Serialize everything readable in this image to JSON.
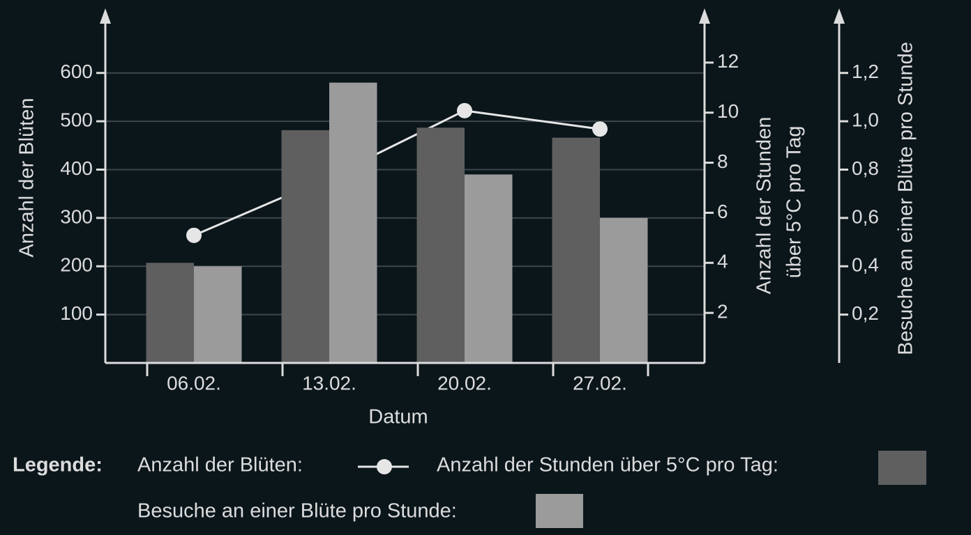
{
  "chart_data": {
    "type": "bar",
    "x_label": "Datum",
    "y_label": "Anzahl der Blüten",
    "y2_label": [
      "Anzahl der Stunden",
      "über 5°C pro Tag"
    ],
    "y3_label": "Besuche an einer Blüte pro Stunde",
    "legend_title": "Legende:",
    "categories": [
      "06.02.",
      "13.02.",
      "20.02.",
      "27.02."
    ],
    "series": [
      {
        "name": "Anzahl der Blüten:",
        "type": "line",
        "color": "#e6e6e6",
        "axis": "y",
        "values": [
          264,
          384,
          522,
          484
        ]
      },
      {
        "name": "Anzahl der Stunden über 5°C pro Tag:",
        "color": "#5f5f5f",
        "axis": "y2",
        "values": [
          4,
          9.3,
          9.4,
          9
        ]
      },
      {
        "name": "Besuche an einer Blüte pro Stunde:",
        "color": "#9b9b9b",
        "axis": "y3",
        "values": [
          0.4,
          1.16,
          0.78,
          0.6
        ]
      }
    ],
    "ylim": [
      0,
      725
    ],
    "yticks": [
      100,
      200,
      300,
      400,
      500,
      600
    ],
    "y2lim": [
      0,
      14
    ],
    "y2ticks": [
      2,
      4,
      6,
      8,
      10,
      12
    ],
    "y3lim": [
      0,
      1.45
    ],
    "y3ticks": [
      {
        "value": 0.2,
        "label": "0,2"
      },
      {
        "value": 0.4,
        "label": "0,4"
      },
      {
        "value": 0.6,
        "label": "0,6"
      },
      {
        "value": 0.8,
        "label": "0,8"
      },
      {
        "value": 1.0,
        "label": "1,0"
      },
      {
        "value": 1.2,
        "label": "1,2"
      }
    ],
    "grid": true
  }
}
